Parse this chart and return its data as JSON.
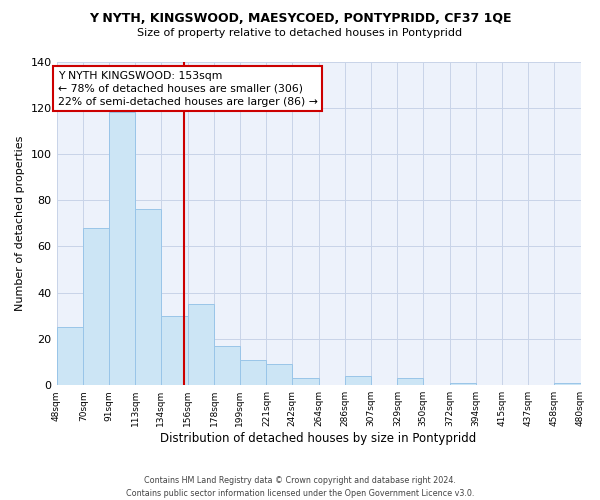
{
  "title": "Y NYTH, KINGSWOOD, MAESYCOED, PONTYPRIDD, CF37 1QE",
  "subtitle": "Size of property relative to detached houses in Pontypridd",
  "xlabel": "Distribution of detached houses by size in Pontypridd",
  "ylabel": "Number of detached properties",
  "bar_color": "#cce5f5",
  "bar_edge_color": "#99c5e8",
  "vline_x": 153,
  "vline_color": "#cc0000",
  "annotation_title": "Y NYTH KINGSWOOD: 153sqm",
  "annotation_line1": "← 78% of detached houses are smaller (306)",
  "annotation_line2": "22% of semi-detached houses are larger (86) →",
  "bin_edges": [
    48,
    70,
    91,
    113,
    134,
    156,
    178,
    199,
    221,
    242,
    264,
    286,
    307,
    329,
    350,
    372,
    394,
    415,
    437,
    458,
    480
  ],
  "bin_counts": [
    25,
    68,
    118,
    76,
    30,
    35,
    17,
    11,
    9,
    3,
    0,
    4,
    0,
    3,
    0,
    1,
    0,
    0,
    0,
    1
  ],
  "ylim": [
    0,
    140
  ],
  "yticks": [
    0,
    20,
    40,
    60,
    80,
    100,
    120,
    140
  ],
  "footer": "Contains HM Land Registry data © Crown copyright and database right 2024.\nContains public sector information licensed under the Open Government Licence v3.0.",
  "bg_color": "#ffffff",
  "plot_bg_color": "#edf2fb",
  "grid_color": "#c8d4e8"
}
